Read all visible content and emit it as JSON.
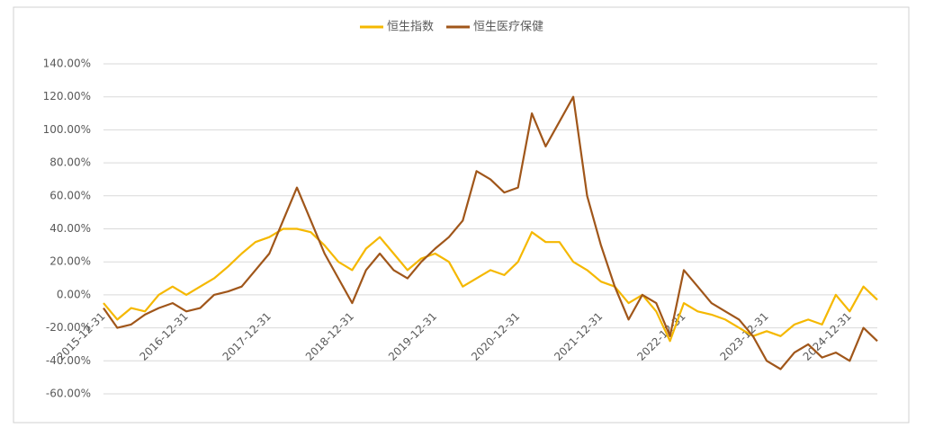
{
  "chart_data": {
    "type": "line",
    "categories": [
      "2015-12-31",
      null,
      null,
      null,
      null,
      null,
      "2016-12-31",
      null,
      null,
      null,
      null,
      null,
      "2017-12-31",
      null,
      null,
      null,
      null,
      null,
      "2018-12-31",
      null,
      null,
      null,
      null,
      null,
      "2019-12-31",
      null,
      null,
      null,
      null,
      null,
      "2020-12-31",
      null,
      null,
      null,
      null,
      null,
      "2021-12-31",
      null,
      null,
      null,
      null,
      null,
      "2022-12-31",
      null,
      null,
      null,
      null,
      null,
      "2023-12-31",
      null,
      null,
      null,
      null,
      null,
      "2024-12-31",
      null,
      null
    ],
    "series": [
      {
        "name": "恒生指数",
        "color": "#f5b800",
        "values": [
          -5,
          -15,
          -8,
          -10,
          0,
          5,
          0,
          5,
          10,
          17,
          25,
          32,
          35,
          40,
          40,
          38,
          30,
          20,
          15,
          28,
          35,
          25,
          15,
          22,
          25,
          20,
          5,
          10,
          15,
          12,
          20,
          38,
          32,
          32,
          20,
          15,
          8,
          5,
          -5,
          0,
          -10,
          -28,
          -5,
          -10,
          -12,
          -15,
          -20,
          -25,
          -22,
          -25,
          -18,
          -15,
          -18,
          0,
          -10,
          5,
          -3
        ]
      },
      {
        "name": "恒生医疗保健",
        "color": "#a0561a",
        "values": [
          -8,
          -20,
          -18,
          -12,
          -8,
          -5,
          -10,
          -8,
          0,
          2,
          5,
          15,
          25,
          45,
          65,
          45,
          25,
          10,
          -5,
          15,
          25,
          15,
          10,
          20,
          28,
          35,
          45,
          75,
          70,
          62,
          65,
          110,
          90,
          105,
          120,
          60,
          30,
          5,
          -15,
          0,
          -5,
          -25,
          15,
          5,
          -5,
          -10,
          -15,
          -25,
          -40,
          -45,
          -35,
          -30,
          -38,
          -35,
          -40,
          -20,
          -28
        ]
      }
    ],
    "ylim": [
      -60,
      140
    ],
    "yticks": [
      {
        "value": -60,
        "label": "-60.00%"
      },
      {
        "value": -40,
        "label": "-40.00%"
      },
      {
        "value": -20,
        "label": "-20.00%"
      },
      {
        "value": 0,
        "label": "0.00%"
      },
      {
        "value": 20,
        "label": "20.00%"
      },
      {
        "value": 40,
        "label": "40.00%"
      },
      {
        "value": 60,
        "label": "60.00%"
      },
      {
        "value": 80,
        "label": "80.00%"
      },
      {
        "value": 100,
        "label": "100.00%"
      },
      {
        "value": 120,
        "label": "120.00%"
      },
      {
        "value": 140,
        "label": "140.00%"
      }
    ],
    "grid": true,
    "legend": "top"
  }
}
